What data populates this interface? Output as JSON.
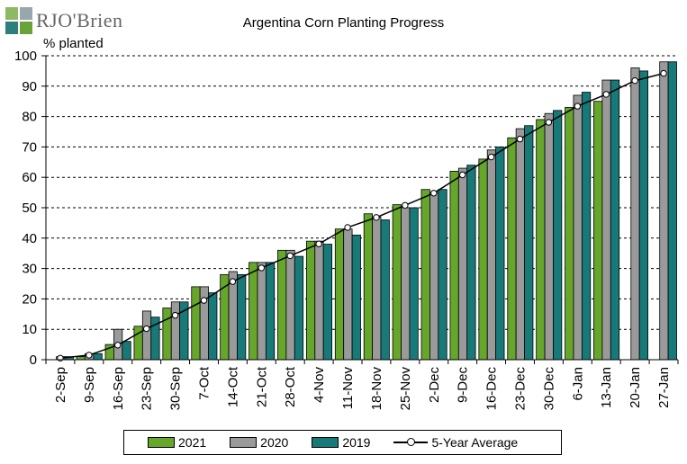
{
  "branding": {
    "logo_text": "RJO'Brien"
  },
  "colors": {
    "2021": "#66a62b",
    "2020": "#9a9a9a",
    "2019": "#177a78",
    "avg_line": "#000000",
    "avg_marker": "#ffffff"
  },
  "chart_data": {
    "type": "bar",
    "title": "Argentina Corn Planting Progress",
    "ylabel": "% planted",
    "xlabel": "",
    "ylim": [
      0,
      100
    ],
    "yticks": [
      0,
      10,
      20,
      30,
      40,
      50,
      60,
      70,
      80,
      90,
      100
    ],
    "grid": "horizontal-dashed",
    "legend_position": "bottom",
    "categories": [
      "2-Sep",
      "9-Sep",
      "16-Sep",
      "23-Sep",
      "30-Sep",
      "7-Oct",
      "14-Oct",
      "21-Oct",
      "28-Oct",
      "4-Nov",
      "11-Nov",
      "18-Nov",
      "25-Nov",
      "2-Dec",
      "9-Dec",
      "16-Dec",
      "23-Dec",
      "30-Dec",
      "6-Jan",
      "13-Jan",
      "20-Jan",
      "27-Jan"
    ],
    "series": [
      {
        "name": "2021",
        "kind": "bar",
        "values": [
          0,
          1,
          5,
          11,
          17,
          24,
          28,
          32,
          36,
          39,
          43,
          48,
          51,
          56,
          62,
          66,
          73,
          79,
          83,
          85,
          null,
          null
        ]
      },
      {
        "name": "2020",
        "kind": "bar",
        "values": [
          1,
          2,
          10,
          16,
          19,
          24,
          29,
          32,
          36,
          39,
          43,
          47,
          50,
          55,
          63,
          69,
          76,
          81,
          87,
          92,
          96,
          98
        ]
      },
      {
        "name": "2019",
        "kind": "bar",
        "values": [
          1,
          2,
          6,
          14,
          19,
          22,
          28,
          32,
          34,
          38,
          41,
          46,
          50,
          56,
          64,
          70,
          77,
          82,
          88,
          92,
          95,
          98
        ]
      },
      {
        "name": "5-Year Average",
        "kind": "line",
        "values": [
          0.5,
          1.5,
          4.8,
          10.2,
          14.6,
          19.5,
          25.7,
          30.2,
          34.2,
          38.1,
          43.5,
          46.8,
          50.8,
          54.8,
          60.8,
          66.7,
          72.6,
          78.1,
          83.4,
          87.3,
          91.8,
          94.2
        ]
      }
    ]
  }
}
